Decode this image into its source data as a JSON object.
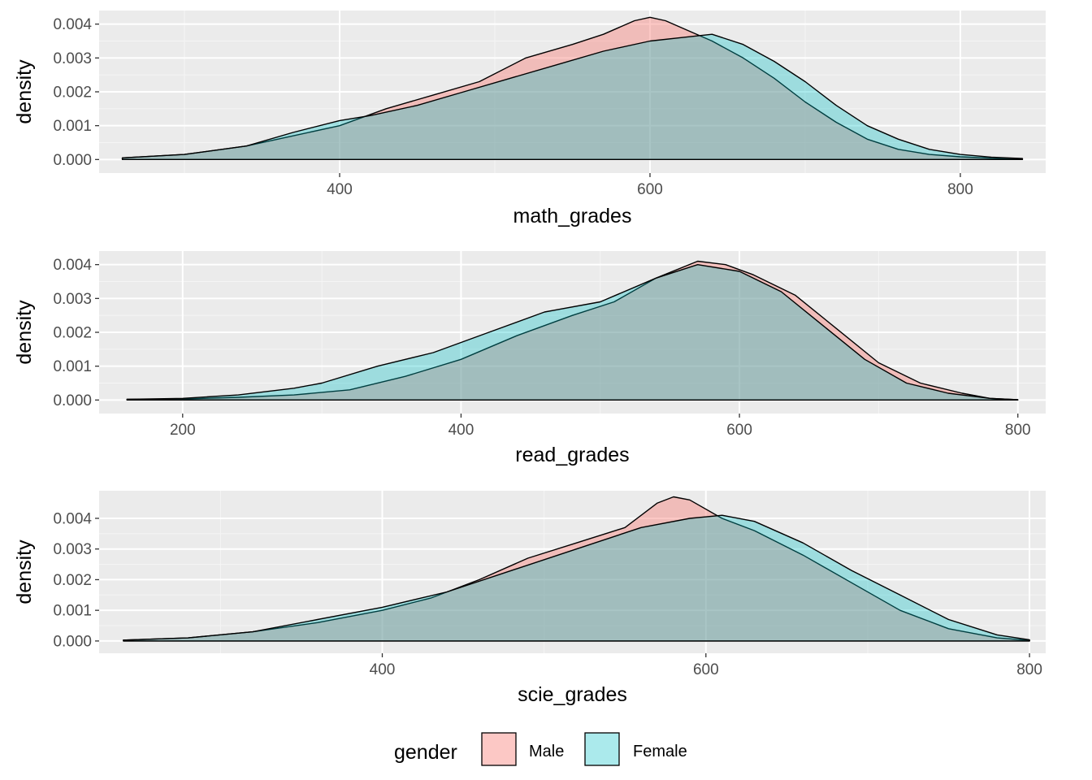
{
  "chart_data": [
    {
      "type": "area",
      "xlabel": "math_grades",
      "ylabel": "density",
      "xlim": [
        245,
        855
      ],
      "ylim": [
        -0.0004,
        0.0044
      ],
      "x_ticks": [
        400,
        600,
        800
      ],
      "y_ticks": [
        0.0,
        0.001,
        0.002,
        0.003,
        0.004
      ],
      "y_tick_labels": [
        "0.000",
        "0.001",
        "0.002",
        "0.003",
        "0.004"
      ],
      "grid": true,
      "series": [
        {
          "name": "Male",
          "x": [
            260,
            300,
            340,
            370,
            400,
            430,
            460,
            490,
            520,
            550,
            570,
            590,
            600,
            610,
            625,
            640,
            660,
            680,
            700,
            720,
            740,
            760,
            780,
            800,
            820,
            840
          ],
          "y": [
            5e-05,
            0.00015,
            0.0004,
            0.0007,
            0.001,
            0.0015,
            0.0019,
            0.0023,
            0.003,
            0.0034,
            0.0037,
            0.0041,
            0.0042,
            0.0041,
            0.0038,
            0.0035,
            0.003,
            0.0024,
            0.0017,
            0.0011,
            0.0006,
            0.0003,
            0.00015,
            8e-05,
            4e-05,
            2e-05
          ]
        },
        {
          "name": "Female",
          "x": [
            260,
            300,
            340,
            370,
            400,
            420,
            450,
            480,
            510,
            540,
            570,
            600,
            620,
            640,
            660,
            680,
            700,
            720,
            740,
            760,
            780,
            800,
            820,
            840
          ],
          "y": [
            5e-05,
            0.00015,
            0.0004,
            0.0008,
            0.00115,
            0.0013,
            0.0016,
            0.002,
            0.0024,
            0.0028,
            0.0032,
            0.0035,
            0.0036,
            0.0037,
            0.0034,
            0.0029,
            0.0023,
            0.0016,
            0.001,
            0.0006,
            0.0003,
            0.00015,
            7e-05,
            3e-05
          ]
        }
      ]
    },
    {
      "type": "area",
      "xlabel": "read_grades",
      "ylabel": "density",
      "xlim": [
        140,
        820
      ],
      "ylim": [
        -0.0004,
        0.0044
      ],
      "x_ticks": [
        200,
        400,
        600,
        800
      ],
      "y_ticks": [
        0.0,
        0.001,
        0.002,
        0.003,
        0.004
      ],
      "y_tick_labels": [
        "0.000",
        "0.001",
        "0.002",
        "0.003",
        "0.004"
      ],
      "grid": true,
      "series": [
        {
          "name": "Male",
          "x": [
            160,
            200,
            240,
            280,
            320,
            360,
            400,
            440,
            480,
            510,
            540,
            570,
            590,
            610,
            640,
            670,
            700,
            730,
            760,
            780,
            800
          ],
          "y": [
            2e-05,
            3e-05,
            8e-05,
            0.00015,
            0.0003,
            0.0007,
            0.0012,
            0.0019,
            0.0025,
            0.0029,
            0.0036,
            0.0041,
            0.004,
            0.0037,
            0.0031,
            0.0021,
            0.0011,
            0.0005,
            0.0002,
            5e-05,
            1e-05
          ]
        },
        {
          "name": "Female",
          "x": [
            160,
            200,
            240,
            280,
            300,
            340,
            380,
            420,
            460,
            500,
            540,
            570,
            600,
            630,
            660,
            690,
            720,
            750,
            780,
            800
          ],
          "y": [
            2e-05,
            5e-05,
            0.00015,
            0.00035,
            0.0005,
            0.001,
            0.0014,
            0.002,
            0.0026,
            0.0029,
            0.0036,
            0.004,
            0.0038,
            0.0032,
            0.0022,
            0.0012,
            0.0005,
            0.0002,
            5e-05,
            1e-05
          ]
        }
      ]
    },
    {
      "type": "area",
      "xlabel": "scie_grades",
      "ylabel": "density",
      "xlim": [
        225,
        810
      ],
      "ylim": [
        -0.0004,
        0.0049
      ],
      "x_ticks": [
        400,
        600,
        800
      ],
      "y_ticks": [
        0.0,
        0.001,
        0.002,
        0.003,
        0.004
      ],
      "y_tick_labels": [
        "0.000",
        "0.001",
        "0.002",
        "0.003",
        "0.004"
      ],
      "grid": true,
      "series": [
        {
          "name": "Male",
          "x": [
            240,
            280,
            320,
            360,
            400,
            430,
            460,
            490,
            520,
            550,
            570,
            580,
            590,
            610,
            630,
            660,
            690,
            720,
            750,
            780,
            800
          ],
          "y": [
            3e-05,
            0.0001,
            0.0003,
            0.0006,
            0.001,
            0.0014,
            0.002,
            0.0027,
            0.0032,
            0.0037,
            0.0045,
            0.0047,
            0.0046,
            0.004,
            0.0036,
            0.0028,
            0.0019,
            0.001,
            0.0004,
            0.0001,
            2e-05
          ]
        },
        {
          "name": "Female",
          "x": [
            240,
            280,
            320,
            360,
            400,
            440,
            480,
            520,
            560,
            590,
            610,
            630,
            660,
            690,
            720,
            750,
            780,
            800
          ],
          "y": [
            3e-05,
            0.0001,
            0.0003,
            0.0007,
            0.0011,
            0.0016,
            0.0023,
            0.003,
            0.0037,
            0.004,
            0.0041,
            0.0039,
            0.0032,
            0.0023,
            0.0015,
            0.0007,
            0.0002,
            4e-05
          ]
        }
      ]
    }
  ],
  "legend": {
    "title": "gender",
    "items": [
      {
        "label": "Male",
        "color": "#F8766D"
      },
      {
        "label": "Female",
        "color": "#00BFC4"
      }
    ]
  }
}
